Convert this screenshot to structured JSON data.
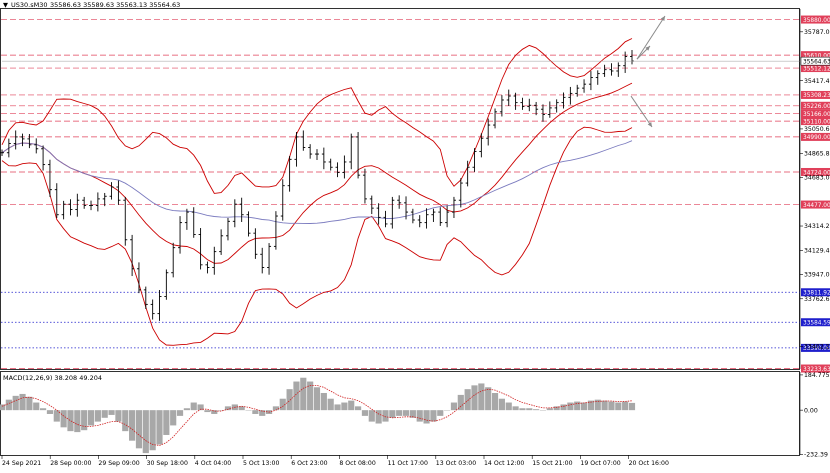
{
  "header": {
    "arrow_glyph": "▼",
    "symbol": "US30.sM30",
    "ohlc": "35586.63 35589.63 35563.13 35564.63"
  },
  "macd_label": "MACD(12,26,9) 38.208 49.204",
  "colors": {
    "background": "#ffffff",
    "frame": "#000000",
    "bars": "#000000",
    "ma_line": "#7b7bbf",
    "bollinger": "#cc0000",
    "level_red": "#e0405a",
    "level_blue": "#1f1fcc",
    "forecast_arrow": "#8a8a8a",
    "macd_hist": "#a8a8a8",
    "macd_signal": "#d02020"
  },
  "chart_data": [
    {
      "type": "candlestick",
      "symbol": "US30.sM30",
      "last_ohlc": {
        "open": 35586.63,
        "high": 35589.63,
        "low": 35563.13,
        "close": 35564.63
      },
      "y_ticks": [
        35787.0,
        35417.4,
        35050.6,
        34865.8,
        34683.0,
        34314.2,
        34129.4,
        33947.0,
        33762.6,
        33402.2
      ],
      "ylim": [
        33230,
        35960
      ],
      "x_labels": [
        "24 Sep 2021",
        "28 Sep 00:00",
        "29 Sep 09:00",
        "30 Sep 18:00",
        "4 Oct 04:00",
        "5 Oct 13:00",
        "6 Oct 23:00",
        "8 Oct 08:00",
        "11 Oct 17:00",
        "13 Oct 03:00",
        "14 Oct 12:00",
        "15 Oct 21:00",
        "19 Oct 07:00",
        "20 Oct 16:00"
      ],
      "price_tag": {
        "value": 35564.63,
        "label": "35564.63"
      },
      "levels": [
        {
          "value": 35880.0,
          "label": "35880.00",
          "color": "red"
        },
        {
          "value": 35610.0,
          "label": "35610.00",
          "color": "red"
        },
        {
          "value": 35512.12,
          "label": "35512.12",
          "color": "red"
        },
        {
          "value": 35308.23,
          "label": "35308.23",
          "color": "red"
        },
        {
          "value": 35226.0,
          "label": "35226.00",
          "color": "red"
        },
        {
          "value": 35166.0,
          "label": "35166.00",
          "color": "red"
        },
        {
          "value": 35110.0,
          "label": "35110.00",
          "color": "red"
        },
        {
          "value": 34990.0,
          "label": "34990.00",
          "color": "red"
        },
        {
          "value": 34724.0,
          "label": "34724.00",
          "color": "red"
        },
        {
          "value": 34477.0,
          "label": "34477.00",
          "color": "red"
        },
        {
          "value": 33811.92,
          "label": "33811.92",
          "color": "blue"
        },
        {
          "value": 33584.59,
          "label": "33584.59",
          "color": "blue"
        },
        {
          "value": 33390.0,
          "label": "33390.00",
          "color": "blue"
        },
        {
          "value": 33233.63,
          "label": "33233.63",
          "color": "red"
        }
      ],
      "close_series": [
        34870,
        34940,
        34990,
        34975,
        34930,
        34900,
        34780,
        34590,
        34400,
        34480,
        34440,
        34510,
        34470,
        34470,
        34520,
        34540,
        34610,
        34510,
        34210,
        33990,
        33830,
        33720,
        33650,
        33780,
        33960,
        34150,
        34340,
        34420,
        34250,
        34020,
        34000,
        34120,
        34240,
        34350,
        34480,
        34400,
        34260,
        34100,
        34000,
        34160,
        34390,
        34620,
        34820,
        34990,
        34910,
        34860,
        34860,
        34800,
        34760,
        34720,
        34800,
        34990,
        34700,
        34520,
        34450,
        34380,
        34330,
        34510,
        34490,
        34420,
        34360,
        34340,
        34400,
        34420,
        34340,
        34420,
        34510,
        34640,
        34760,
        34880,
        34980,
        35080,
        35180,
        35270,
        35300,
        35250,
        35220,
        35230,
        35200,
        35160,
        35210,
        35250,
        35290,
        35320,
        35360,
        35390,
        35440,
        35470,
        35500,
        35490,
        35530,
        35600,
        35565
      ]
    },
    {
      "type": "bar",
      "title": "MACD(12,26,9) 38.208 49.204",
      "y_ticks": [
        184.775,
        0.0,
        -232.39
      ],
      "ylim": [
        -235,
        200
      ],
      "values": [
        30,
        55,
        75,
        85,
        70,
        40,
        10,
        -20,
        -60,
        -90,
        -110,
        -115,
        -105,
        -80,
        -60,
        -40,
        -25,
        -60,
        -110,
        -160,
        -200,
        -225,
        -210,
        -180,
        -130,
        -80,
        -30,
        10,
        40,
        30,
        -10,
        -20,
        0,
        20,
        30,
        20,
        0,
        -20,
        -30,
        -20,
        20,
        60,
        110,
        150,
        170,
        150,
        120,
        90,
        60,
        30,
        40,
        50,
        20,
        -30,
        -60,
        -70,
        -60,
        -40,
        -30,
        -30,
        -40,
        -60,
        -70,
        -60,
        -30,
        0,
        40,
        80,
        110,
        130,
        140,
        120,
        90,
        60,
        40,
        20,
        10,
        10,
        5,
        0,
        10,
        20,
        30,
        40,
        45,
        40,
        50,
        55,
        50,
        45,
        40,
        45,
        38
      ],
      "signal": [
        20,
        35,
        50,
        65,
        68,
        60,
        45,
        25,
        0,
        -30,
        -55,
        -75,
        -85,
        -85,
        -80,
        -70,
        -60,
        -60,
        -75,
        -100,
        -130,
        -160,
        -180,
        -185,
        -170,
        -140,
        -100,
        -60,
        -20,
        5,
        5,
        -5,
        -5,
        5,
        15,
        20,
        15,
        5,
        -5,
        -10,
        0,
        20,
        50,
        85,
        115,
        130,
        130,
        120,
        100,
        80,
        65,
        60,
        50,
        30,
        5,
        -20,
        -35,
        -40,
        -38,
        -35,
        -35,
        -42,
        -52,
        -58,
        -50,
        -35,
        -10,
        20,
        50,
        80,
        100,
        110,
        105,
        90,
        75,
        55,
        40,
        30,
        20,
        12,
        12,
        15,
        20,
        28,
        35,
        38,
        42,
        46,
        48,
        48,
        45,
        46,
        49
      ]
    }
  ]
}
